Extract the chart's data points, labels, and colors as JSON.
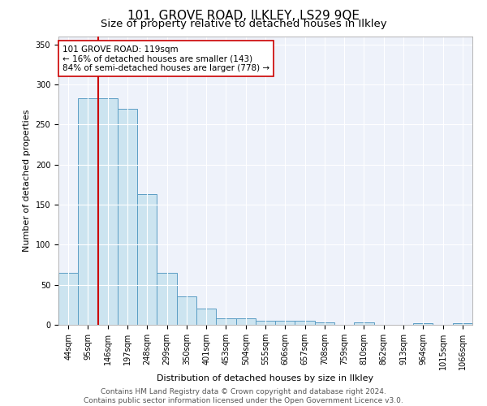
{
  "title": "101, GROVE ROAD, ILKLEY, LS29 9QE",
  "subtitle": "Size of property relative to detached houses in Ilkley",
  "xlabel": "Distribution of detached houses by size in Ilkley",
  "ylabel": "Number of detached properties",
  "footer_line1": "Contains HM Land Registry data © Crown copyright and database right 2024.",
  "footer_line2": "Contains public sector information licensed under the Open Government Licence v3.0.",
  "categories": [
    "44sqm",
    "95sqm",
    "146sqm",
    "197sqm",
    "248sqm",
    "299sqm",
    "350sqm",
    "401sqm",
    "453sqm",
    "504sqm",
    "555sqm",
    "606sqm",
    "657sqm",
    "708sqm",
    "759sqm",
    "810sqm",
    "862sqm",
    "913sqm",
    "964sqm",
    "1015sqm",
    "1066sqm"
  ],
  "values": [
    65,
    283,
    283,
    270,
    163,
    65,
    35,
    20,
    8,
    8,
    5,
    5,
    5,
    3,
    0,
    3,
    0,
    0,
    2,
    0,
    2
  ],
  "bar_color": "#cce4f0",
  "bar_edge_color": "#5b9dc4",
  "vline_x_idx": 1.5,
  "vline_color": "#cc0000",
  "annotation_text": "101 GROVE ROAD: 119sqm\n← 16% of detached houses are smaller (143)\n84% of semi-detached houses are larger (778) →",
  "annotation_box_color": "#ffffff",
  "annotation_box_edge_color": "#cc0000",
  "ylim": [
    0,
    360
  ],
  "yticks": [
    0,
    50,
    100,
    150,
    200,
    250,
    300,
    350
  ],
  "bg_color": "#eef2fa",
  "grid_color": "#ffffff",
  "title_fontsize": 11,
  "subtitle_fontsize": 9.5,
  "axis_label_fontsize": 8,
  "tick_fontsize": 7,
  "annotation_fontsize": 7.5,
  "footer_fontsize": 6.5
}
